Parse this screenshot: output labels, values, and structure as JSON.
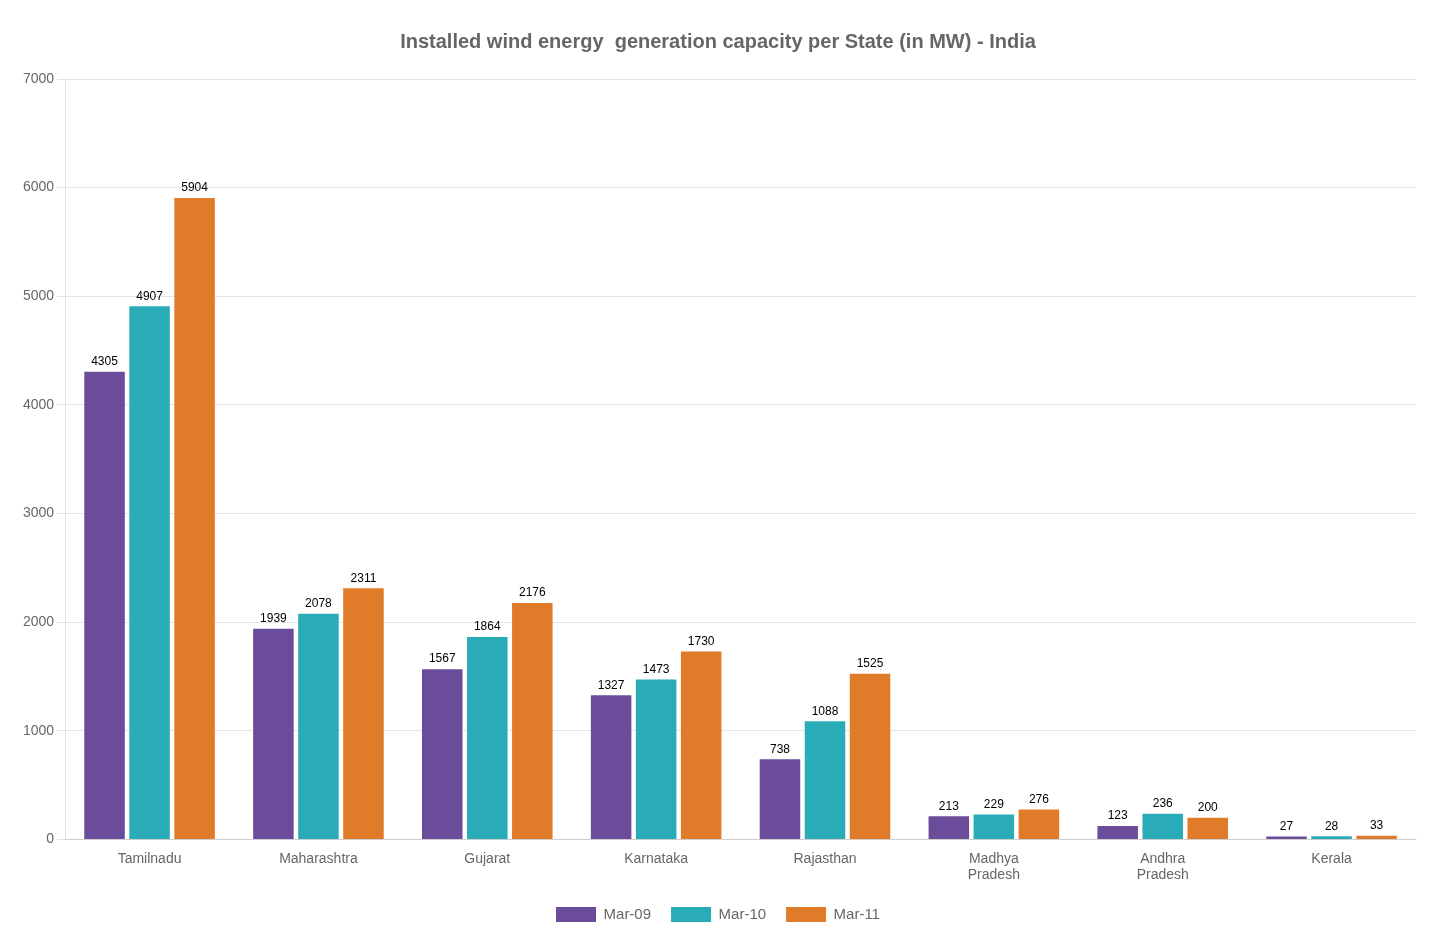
{
  "chart_data": {
    "type": "bar",
    "title": "Installed wind energy  generation capacity per State (in MW) - India",
    "categories": [
      "Tamilnadu",
      "Maharashtra",
      "Gujarat",
      "Karnataka",
      "Rajasthan",
      "Madhya\nPradesh",
      "Andhra\nPradesh",
      "Kerala"
    ],
    "series": [
      {
        "name": "Mar-09",
        "color": "#6B4C9A",
        "values": [
          4305,
          1939,
          1567,
          1327,
          738,
          213,
          123,
          27
        ]
      },
      {
        "name": "Mar-10",
        "color": "#2AACB8",
        "values": [
          4907,
          2078,
          1864,
          1473,
          1088,
          229,
          236,
          28
        ]
      },
      {
        "name": "Mar-11",
        "color": "#E07B2A",
        "values": [
          5904,
          2311,
          2176,
          1730,
          1525,
          276,
          200,
          33
        ]
      }
    ],
    "ylim": [
      0,
      7000
    ],
    "yticks": [
      0,
      1000,
      2000,
      3000,
      4000,
      5000,
      6000,
      7000
    ],
    "grid": true,
    "legend": "bottom",
    "data_labels": true
  }
}
